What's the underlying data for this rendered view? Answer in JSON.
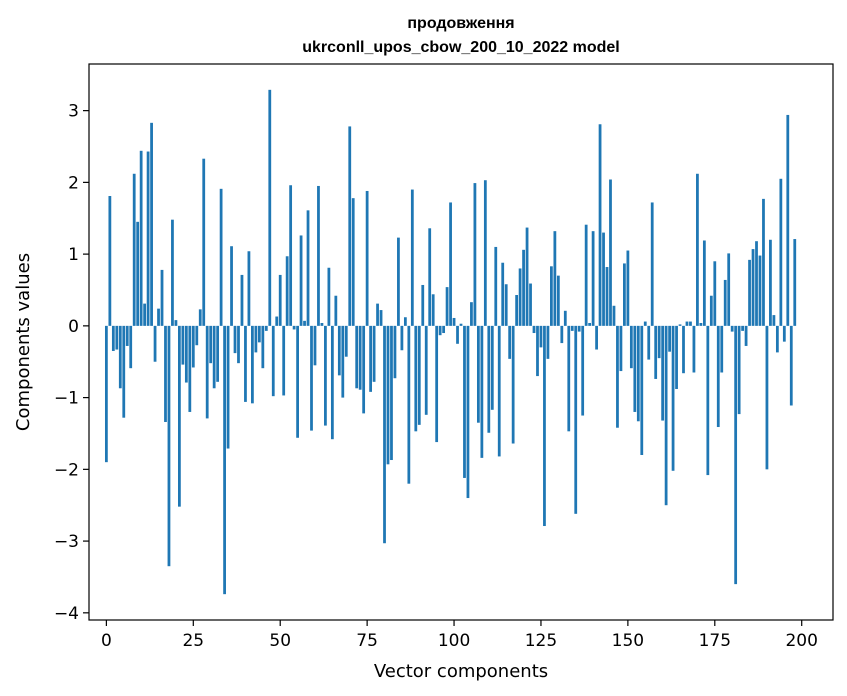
{
  "chart_data": {
    "type": "bar",
    "title_line1": "продовження",
    "title_line2": "ukrconll_upos_cbow_200_10_2022 model",
    "xlabel": "Vector components",
    "ylabel": "Components values",
    "xlim": [
      -5,
      209
    ],
    "ylim": [
      -4.1,
      3.65
    ],
    "xticks": [
      0,
      25,
      50,
      75,
      100,
      125,
      150,
      175,
      200
    ],
    "yticks": [
      -4,
      -3,
      -2,
      -1,
      0,
      1,
      2,
      3
    ],
    "grid": false,
    "color": "#1f77b4",
    "values": [
      -1.9,
      1.81,
      -0.35,
      -0.33,
      -0.87,
      -1.28,
      -0.28,
      -0.59,
      2.12,
      1.45,
      2.44,
      0.31,
      2.43,
      2.83,
      -0.5,
      0.24,
      0.78,
      -1.34,
      -3.35,
      1.48,
      0.08,
      -2.52,
      -0.54,
      -0.79,
      -1.2,
      -0.58,
      -0.27,
      0.23,
      2.33,
      -1.29,
      -0.52,
      -0.87,
      -0.78,
      1.91,
      -3.74,
      -1.71,
      1.11,
      -0.38,
      -0.52,
      0.71,
      -1.06,
      1.04,
      -1.08,
      -0.37,
      -0.23,
      -0.59,
      -0.07,
      3.29,
      -0.98,
      0.13,
      0.71,
      -0.97,
      0.97,
      1.96,
      -0.05,
      -1.56,
      1.26,
      0.07,
      1.61,
      -1.46,
      -0.55,
      1.95,
      0.04,
      -1.39,
      0.81,
      -1.58,
      0.42,
      -0.69,
      -1.0,
      -0.43,
      2.78,
      1.78,
      -0.87,
      -0.89,
      -1.22,
      1.88,
      -0.92,
      -0.78,
      0.31,
      0.22,
      -3.03,
      -1.93,
      -1.87,
      -0.73,
      1.23,
      -0.34,
      0.12,
      -2.2,
      1.9,
      -1.47,
      -1.38,
      0.57,
      -1.24,
      1.36,
      0.44,
      -1.62,
      -0.13,
      -0.1,
      0.54,
      1.72,
      0.11,
      -0.25,
      0.03,
      -2.12,
      -2.4,
      0.33,
      1.99,
      -1.35,
      -1.84,
      2.03,
      -1.49,
      -1.17,
      1.1,
      -1.82,
      0.88,
      0.58,
      -0.46,
      -1.64,
      0.43,
      0.8,
      1.06,
      1.37,
      0.59,
      -0.1,
      -0.7,
      -0.3,
      -2.79,
      -0.46,
      0.83,
      1.32,
      0.7,
      -0.24,
      0.21,
      -1.47,
      -0.07,
      -2.62,
      -0.08,
      -1.25,
      1.41,
      0.04,
      1.32,
      -0.33,
      2.81,
      1.3,
      0.82,
      2.04,
      0.28,
      -1.42,
      -0.63,
      0.87,
      1.05,
      -0.59,
      -1.2,
      -1.33,
      -1.8,
      0.06,
      -0.47,
      1.72,
      -0.74,
      -0.45,
      -1.32,
      -2.5,
      -0.36,
      -2.02,
      -0.88,
      0.02,
      -0.66,
      0.06,
      0.06,
      -0.65,
      2.12,
      0.04,
      1.19,
      -2.08,
      0.42,
      0.9,
      -1.41,
      -0.65,
      0.64,
      1.01,
      -0.08,
      -3.6,
      -1.23,
      -0.07,
      -0.28,
      0.92,
      1.07,
      1.18,
      0.98,
      1.77,
      -2.0,
      1.2,
      0.15,
      -0.37,
      2.05,
      -0.22,
      2.94,
      -1.11,
      1.21
    ]
  }
}
